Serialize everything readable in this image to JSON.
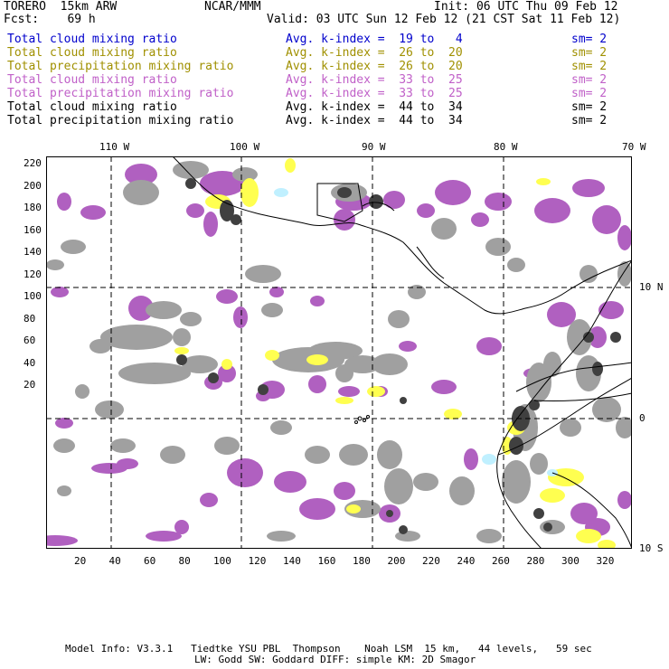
{
  "header": {
    "left_line1": "TORERO  15km ARW",
    "center_line1": "NCAR/MMM",
    "right_line1": "Init: 06 UTC Thu 09 Feb 12",
    "left_line2": "Fcst:    69 h",
    "right_line2": "Valid: 03 UTC Sun 12 Feb 12 (21 CST Sat 11 Feb 12)"
  },
  "legend": [
    {
      "field": "Total cloud mixing ratio",
      "kindex": "Avg. k-index =  19 to   4",
      "sm": "sm= 2",
      "color": "#0000cc"
    },
    {
      "field": "Total cloud mixing ratio",
      "kindex": "Avg. k-index =  26 to  20",
      "sm": "sm= 2",
      "color": "#a09000"
    },
    {
      "field": "Total precipitation mixing ratio",
      "kindex": "Avg. k-index =  26 to  20",
      "sm": "sm= 2",
      "color": "#a09000"
    },
    {
      "field": "Total cloud mixing ratio",
      "kindex": "Avg. k-index =  33 to  25",
      "sm": "sm= 2",
      "color": "#c060c8"
    },
    {
      "field": "Total precipitation mixing ratio",
      "kindex": "Avg. k-index =  33 to  25",
      "sm": "sm= 2",
      "color": "#c060c8"
    },
    {
      "field": "Total cloud mixing ratio",
      "kindex": "Avg. k-index =  44 to  34",
      "sm": "sm= 2",
      "color": "#000000"
    },
    {
      "field": "Total precipitation mixing ratio",
      "kindex": "Avg. k-index =  44 to  34",
      "sm": "sm= 2",
      "color": "#000000"
    }
  ],
  "map": {
    "lon_labels": [
      "110 W",
      "100 W",
      "90 W",
      "80 W",
      "70 W"
    ],
    "lat_labels": [
      "10 N",
      "0",
      "10 S"
    ],
    "x_grid_labels": [
      "20",
      "40",
      "60",
      "80",
      "100",
      "120",
      "140",
      "160",
      "180",
      "200",
      "220",
      "240",
      "260",
      "280",
      "300",
      "320"
    ],
    "y_grid_labels": [
      "220",
      "200",
      "180",
      "160",
      "140",
      "120",
      "100",
      "80",
      "60",
      "40",
      "20"
    ],
    "colors": {
      "purple": "#b060c0",
      "gray": "#a0a0a0",
      "yellow": "#ffff50",
      "cyan": "#c0f0ff",
      "dark": "#404040"
    }
  },
  "footer": {
    "line1": "Model Info: V3.3.1   Tiedtke YSU PBL  Thompson    Noah LSM  15 km,   44 levels,   59 sec",
    "line2": "LW: Godd SW: Goddard DIFF: simple KM: 2D Smagor"
  }
}
